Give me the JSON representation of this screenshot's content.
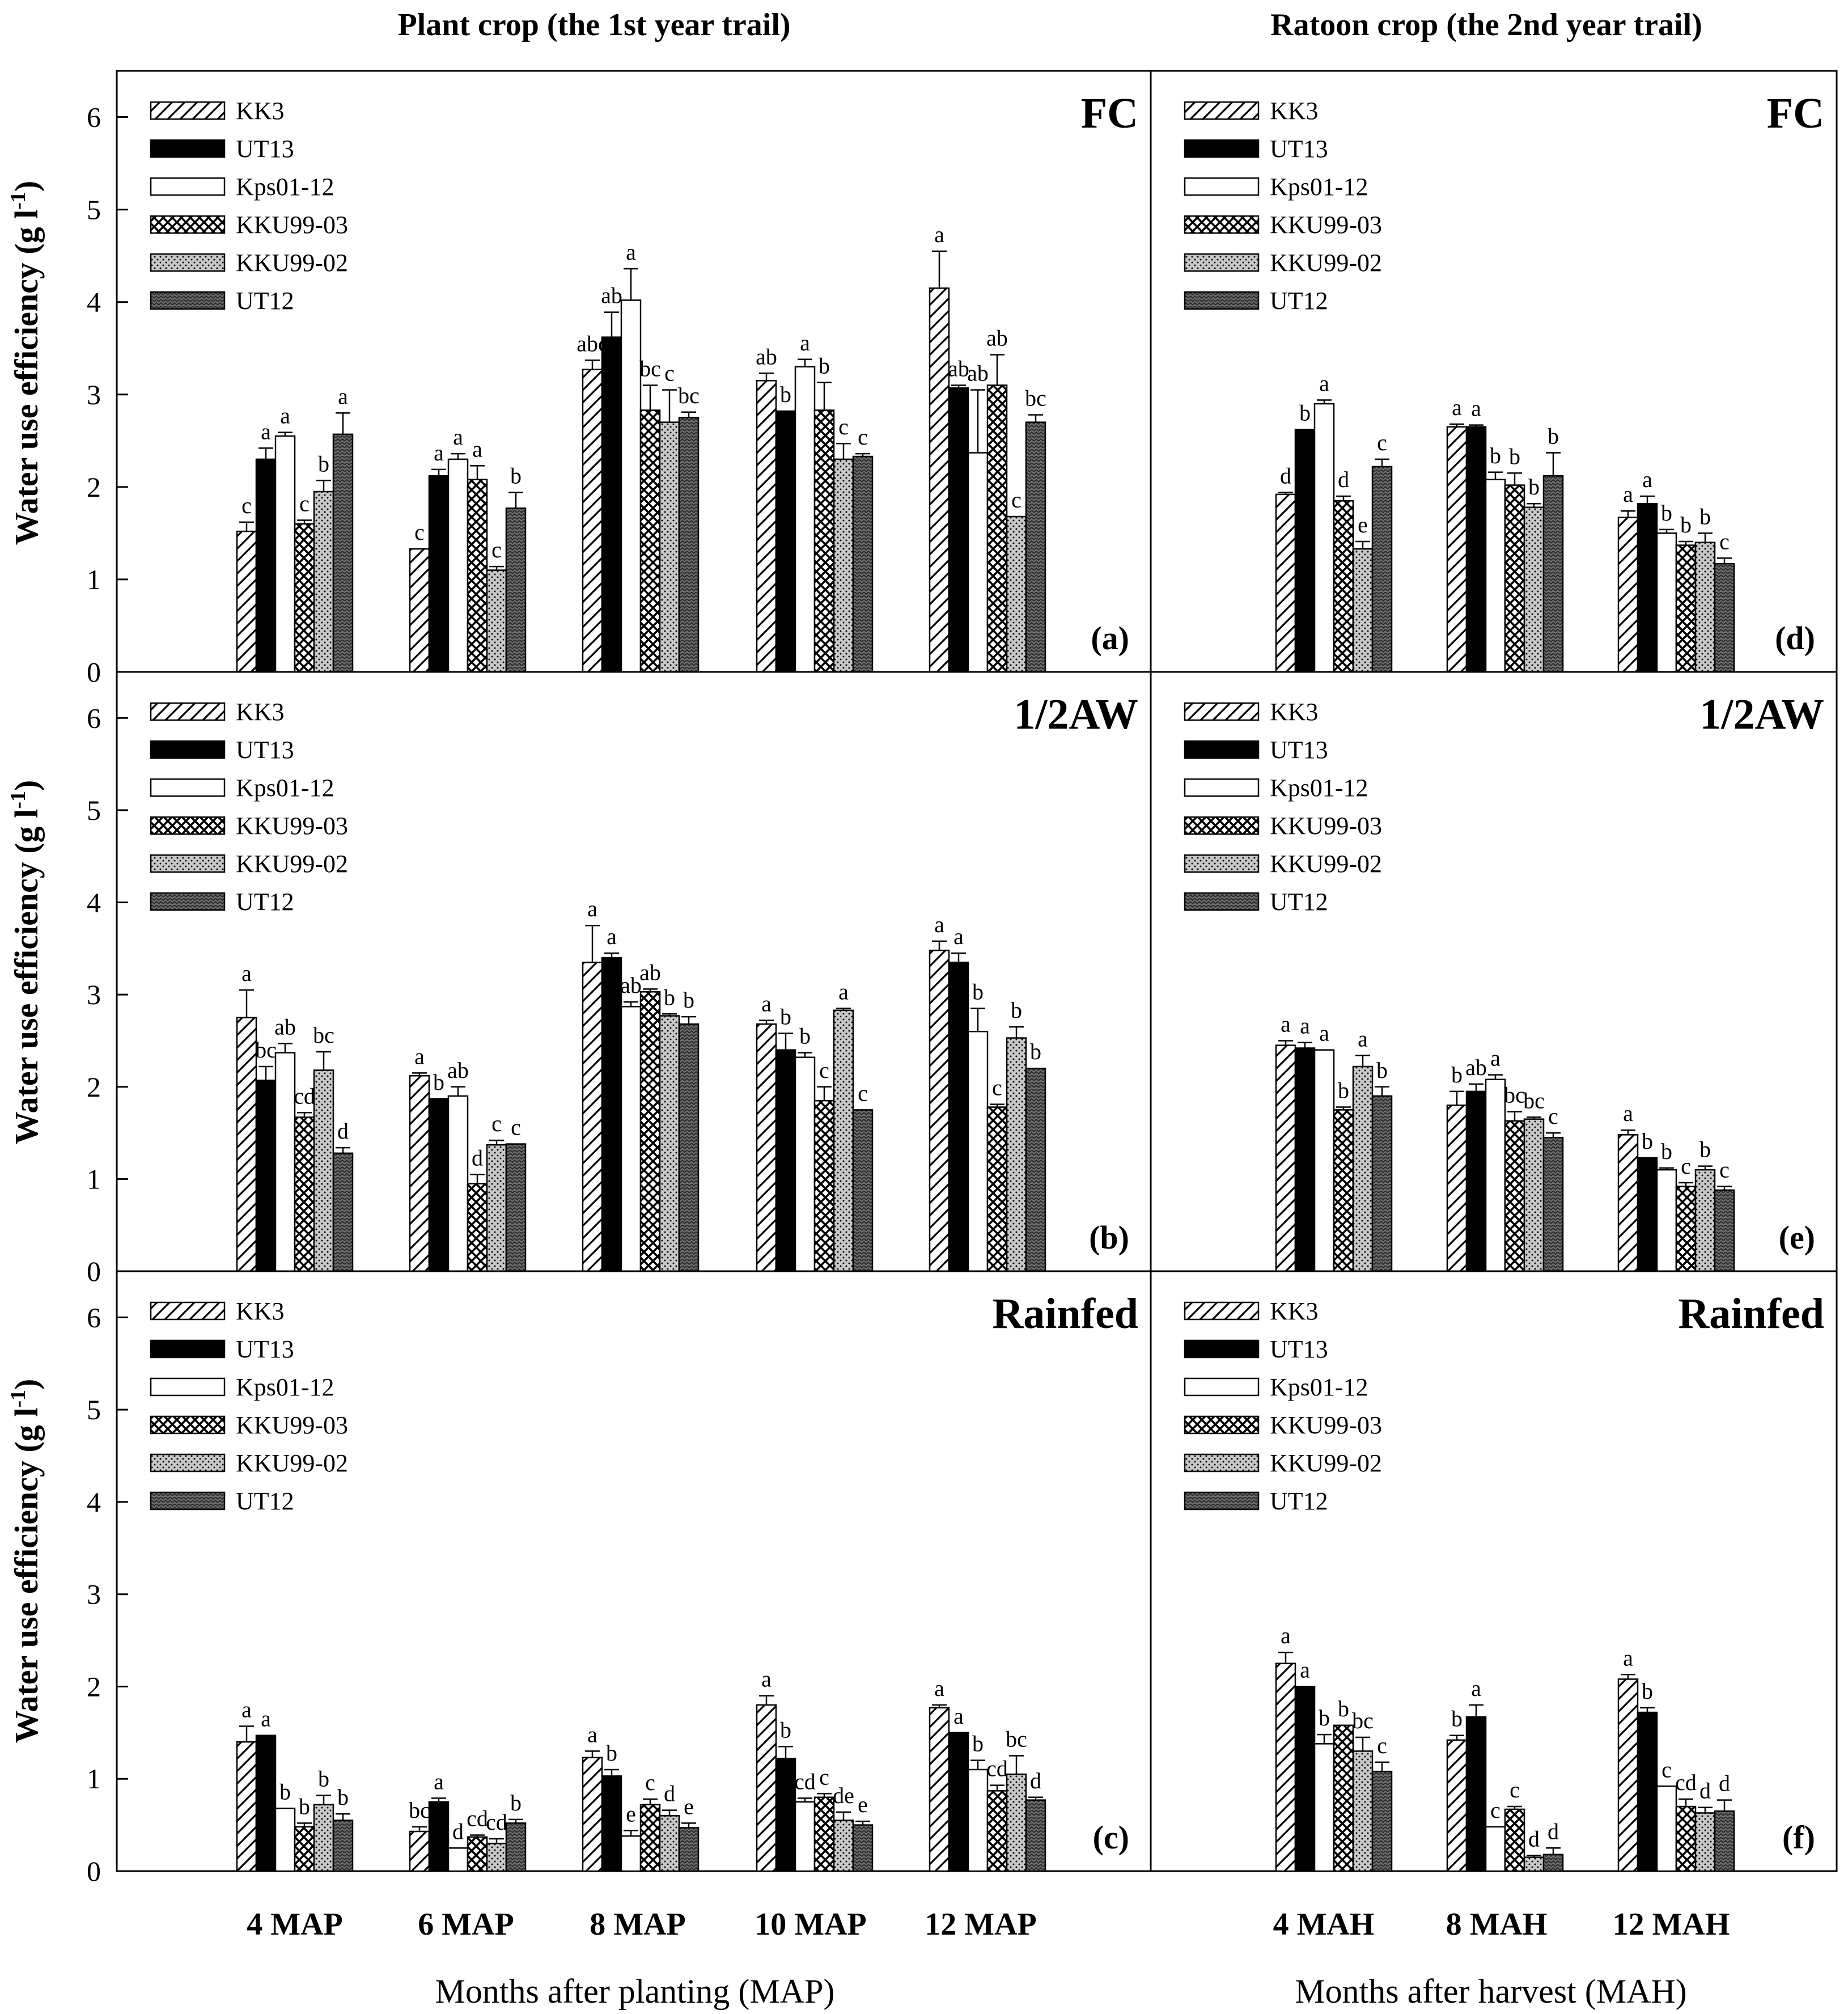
{
  "titles": {
    "left": "Plant crop (the 1st year trail)",
    "right": "Ratoon crop (the 2nd year trail)"
  },
  "y_label_prefix": "Water use efficiency (g l",
  "y_label_sup": "-1",
  "y_label_suffix": ")",
  "x_labels": {
    "left": "Months after planting (MAP)",
    "right": "Months after harvest (MAH)"
  },
  "varieties": [
    {
      "name": "KK3",
      "pattern": "diagonal-hatch"
    },
    {
      "name": "UT13",
      "pattern": "solid-black"
    },
    {
      "name": "Kps01-12",
      "pattern": "white"
    },
    {
      "name": "KKU99-03",
      "pattern": "crosshatch"
    },
    {
      "name": "KKU99-02",
      "pattern": "light-gray-dotted"
    },
    {
      "name": "UT12",
      "pattern": "dark-gray-zigzag"
    }
  ],
  "colors": {
    "black": "#000000",
    "light_gray": "#c8c8c8",
    "dark_gray": "#6e6e6e"
  },
  "chart_data": [
    {
      "type": "bar",
      "panel": "(a)",
      "condition": "FC",
      "crop": "Plant crop",
      "categories": [
        "4 MAP",
        "6 MAP",
        "8 MAP",
        "10 MAP",
        "12 MAP"
      ],
      "ylim": [
        0,
        6.5
      ],
      "yticks": [
        0,
        1,
        2,
        3,
        4,
        5,
        6
      ],
      "series": [
        {
          "name": "KK3",
          "values": [
            1.52,
            1.33,
            3.27,
            3.15,
            4.15
          ],
          "errors": [
            0.1,
            0,
            0.1,
            0.08,
            0.4
          ],
          "letters": [
            "c",
            "c",
            "abc",
            "ab",
            "a"
          ]
        },
        {
          "name": "UT13",
          "values": [
            2.3,
            2.12,
            3.62,
            2.82,
            3.07
          ],
          "errors": [
            0.12,
            0.07,
            0.27,
            0,
            0.03
          ],
          "letters": [
            "a",
            "a",
            "ab",
            "b",
            "ab"
          ]
        },
        {
          "name": "Kps01-12",
          "values": [
            2.55,
            2.3,
            4.02,
            3.3,
            2.37
          ],
          "errors": [
            0.04,
            0.06,
            0.34,
            0.08,
            0.68
          ],
          "letters": [
            "a",
            "a",
            "a",
            "a",
            "ab"
          ]
        },
        {
          "name": "KKU99-03",
          "values": [
            1.6,
            2.08,
            2.83,
            2.83,
            3.1
          ],
          "errors": [
            0.04,
            0.15,
            0.27,
            0.3,
            0.33
          ],
          "letters": [
            "c",
            "a",
            "bc",
            "b",
            "ab"
          ]
        },
        {
          "name": "KKU99-02",
          "values": [
            1.95,
            1.1,
            2.7,
            2.3,
            1.68
          ],
          "errors": [
            0.12,
            0.04,
            0.35,
            0.17,
            0
          ],
          "letters": [
            "b",
            "c",
            "c",
            "c",
            "c"
          ]
        },
        {
          "name": "UT12",
          "values": [
            2.57,
            1.77,
            2.75,
            2.33,
            2.7
          ],
          "errors": [
            0.23,
            0.17,
            0.06,
            0.03,
            0.08
          ],
          "letters": [
            "a",
            "b",
            "bc",
            "c",
            "bc"
          ]
        }
      ]
    },
    {
      "type": "bar",
      "panel": "(b)",
      "condition": "1/2AW",
      "crop": "Plant crop",
      "categories": [
        "4 MAP",
        "6 MAP",
        "8 MAP",
        "10 MAP",
        "12 MAP"
      ],
      "ylim": [
        0,
        6.5
      ],
      "yticks": [
        0,
        1,
        2,
        3,
        4,
        5,
        6
      ],
      "series": [
        {
          "name": "KK3",
          "values": [
            2.75,
            2.12,
            3.35,
            2.68,
            3.48
          ],
          "errors": [
            0.3,
            0.03,
            0.4,
            0.04,
            0.1
          ],
          "letters": [
            "a",
            "a",
            "a",
            "a",
            "a"
          ]
        },
        {
          "name": "UT13",
          "values": [
            2.07,
            1.87,
            3.4,
            2.4,
            3.35
          ],
          "errors": [
            0.15,
            0,
            0.05,
            0.18,
            0.1
          ],
          "letters": [
            "bc",
            "b",
            "a",
            "b",
            "a"
          ]
        },
        {
          "name": "Kps01-12",
          "values": [
            2.37,
            1.9,
            2.87,
            2.32,
            2.6
          ],
          "errors": [
            0.1,
            0.1,
            0.05,
            0.05,
            0.25
          ],
          "letters": [
            "ab",
            "ab",
            "ab",
            "b",
            "b"
          ]
        },
        {
          "name": "KKU99-03",
          "values": [
            1.67,
            0.95,
            3.03,
            1.85,
            1.78
          ],
          "errors": [
            0.05,
            0.1,
            0.03,
            0.15,
            0.03
          ],
          "letters": [
            "cd",
            "d",
            "ab",
            "c",
            "c"
          ]
        },
        {
          "name": "KKU99-02",
          "values": [
            2.18,
            1.37,
            2.77,
            2.83,
            2.53
          ],
          "errors": [
            0.2,
            0.05,
            0.02,
            0.02,
            0.12
          ],
          "letters": [
            "bc",
            "c",
            "b",
            "a",
            "b"
          ]
        },
        {
          "name": "UT12",
          "values": [
            1.28,
            1.38,
            2.68,
            1.75,
            2.2
          ],
          "errors": [
            0.06,
            0,
            0.08,
            0,
            0
          ],
          "letters": [
            "d",
            "c",
            "b",
            "c",
            "b"
          ]
        }
      ]
    },
    {
      "type": "bar",
      "panel": "(c)",
      "condition": "Rainfed",
      "crop": "Plant crop",
      "categories": [
        "4 MAP",
        "6 MAP",
        "8 MAP",
        "10 MAP",
        "12 MAP"
      ],
      "ylim": [
        0,
        6.5
      ],
      "yticks": [
        0,
        1,
        2,
        3,
        4,
        5,
        6
      ],
      "series": [
        {
          "name": "KK3",
          "values": [
            1.4,
            0.43,
            1.23,
            1.8,
            1.77
          ],
          "errors": [
            0.17,
            0.05,
            0.07,
            0.1,
            0.03
          ],
          "letters": [
            "a",
            "bc",
            "a",
            "a",
            "a"
          ]
        },
        {
          "name": "UT13",
          "values": [
            1.47,
            0.75,
            1.03,
            1.22,
            1.5
          ],
          "errors": [
            0,
            0.04,
            0.07,
            0.13,
            0
          ],
          "letters": [
            "a",
            "a",
            "b",
            "b",
            "a"
          ]
        },
        {
          "name": "Kps01-12",
          "values": [
            0.68,
            0.25,
            0.38,
            0.75,
            1.1
          ],
          "errors": [
            0,
            0,
            0.06,
            0.04,
            0.1
          ],
          "letters": [
            "b",
            "d",
            "e",
            "cd",
            "b"
          ]
        },
        {
          "name": "KKU99-03",
          "values": [
            0.48,
            0.37,
            0.72,
            0.8,
            0.87
          ],
          "errors": [
            0.04,
            0.02,
            0.06,
            0.04,
            0.06
          ],
          "letters": [
            "b",
            "cd",
            "c",
            "c",
            "cd"
          ]
        },
        {
          "name": "KKU99-02",
          "values": [
            0.72,
            0.3,
            0.6,
            0.55,
            1.05
          ],
          "errors": [
            0.1,
            0.05,
            0.06,
            0.09,
            0.2
          ],
          "letters": [
            "b",
            "cd",
            "d",
            "de",
            "bc"
          ]
        },
        {
          "name": "UT12",
          "values": [
            0.55,
            0.52,
            0.47,
            0.5,
            0.77
          ],
          "errors": [
            0.07,
            0.04,
            0.05,
            0.04,
            0.03
          ],
          "letters": [
            "b",
            "b",
            "e",
            "e",
            "d"
          ]
        }
      ]
    },
    {
      "type": "bar",
      "panel": "(d)",
      "condition": "FC",
      "crop": "Ratoon crop",
      "categories": [
        "4 MAH",
        "8 MAH",
        "12 MAH"
      ],
      "ylim": [
        0,
        6.5
      ],
      "yticks": [
        0,
        1,
        2,
        3,
        4,
        5,
        6
      ],
      "series": [
        {
          "name": "KK3",
          "values": [
            1.92,
            2.65,
            1.67
          ],
          "errors": [
            0.02,
            0.03,
            0.07
          ],
          "letters": [
            "d",
            "a",
            "a"
          ]
        },
        {
          "name": "UT13",
          "values": [
            2.62,
            2.65,
            1.82
          ],
          "errors": [
            0,
            0.02,
            0.08
          ],
          "letters": [
            "b",
            "a",
            "a"
          ]
        },
        {
          "name": "Kps01-12",
          "values": [
            2.9,
            2.08,
            1.5
          ],
          "errors": [
            0.04,
            0.08,
            0.04
          ],
          "letters": [
            "a",
            "b",
            "b"
          ]
        },
        {
          "name": "KKU99-03",
          "values": [
            1.85,
            2.02,
            1.37
          ],
          "errors": [
            0.05,
            0.13,
            0.04
          ],
          "letters": [
            "d",
            "b",
            "b"
          ]
        },
        {
          "name": "KKU99-02",
          "values": [
            1.33,
            1.78,
            1.4
          ],
          "errors": [
            0.08,
            0.04,
            0.1
          ],
          "letters": [
            "e",
            "b",
            "b"
          ]
        },
        {
          "name": "UT12",
          "values": [
            2.22,
            2.12,
            1.17
          ],
          "errors": [
            0.08,
            0.25,
            0.06
          ],
          "letters": [
            "c",
            "b",
            "c"
          ]
        }
      ]
    },
    {
      "type": "bar",
      "panel": "(e)",
      "condition": "1/2AW",
      "crop": "Ratoon crop",
      "categories": [
        "4 MAH",
        "8 MAH",
        "12 MAH"
      ],
      "ylim": [
        0,
        6.5
      ],
      "yticks": [
        0,
        1,
        2,
        3,
        4,
        5,
        6
      ],
      "series": [
        {
          "name": "KK3",
          "values": [
            2.45,
            1.8,
            1.48
          ],
          "errors": [
            0.05,
            0.15,
            0.05
          ],
          "letters": [
            "a",
            "b",
            "a"
          ]
        },
        {
          "name": "UT13",
          "values": [
            2.42,
            1.95,
            1.23
          ],
          "errors": [
            0.06,
            0.08,
            0
          ],
          "letters": [
            "a",
            "ab",
            "b"
          ]
        },
        {
          "name": "Kps01-12",
          "values": [
            2.4,
            2.08,
            1.1
          ],
          "errors": [
            0,
            0.05,
            0.02
          ],
          "letters": [
            "a",
            "a",
            "b"
          ]
        },
        {
          "name": "KKU99-03",
          "values": [
            1.75,
            1.63,
            0.92
          ],
          "errors": [
            0.03,
            0.1,
            0.04
          ],
          "letters": [
            "b",
            "bc",
            "c"
          ]
        },
        {
          "name": "KKU99-02",
          "values": [
            2.22,
            1.65,
            1.1
          ],
          "errors": [
            0.12,
            0.02,
            0.04
          ],
          "letters": [
            "a",
            "bc",
            "b"
          ]
        },
        {
          "name": "UT12",
          "values": [
            1.9,
            1.45,
            0.88
          ],
          "errors": [
            0.1,
            0.05,
            0.04
          ],
          "letters": [
            "b",
            "c",
            "c"
          ]
        }
      ]
    },
    {
      "type": "bar",
      "panel": "(f)",
      "condition": "Rainfed",
      "crop": "Ratoon crop",
      "categories": [
        "4 MAH",
        "8 MAH",
        "12 MAH"
      ],
      "ylim": [
        0,
        6.5
      ],
      "yticks": [
        0,
        1,
        2,
        3,
        4,
        5,
        6
      ],
      "series": [
        {
          "name": "KK3",
          "values": [
            2.25,
            1.42,
            2.08
          ],
          "errors": [
            0.12,
            0.05,
            0.05
          ],
          "letters": [
            "a",
            "b",
            "a"
          ]
        },
        {
          "name": "UT13",
          "values": [
            2.0,
            1.67,
            1.72
          ],
          "errors": [
            0,
            0.13,
            0.05
          ],
          "letters": [
            "a",
            "a",
            "b"
          ]
        },
        {
          "name": "Kps01-12",
          "values": [
            1.38,
            0.48,
            0.92
          ],
          "errors": [
            0.1,
            0,
            0
          ],
          "letters": [
            "b",
            "c",
            "c"
          ]
        },
        {
          "name": "KKU99-03",
          "values": [
            1.58,
            0.67,
            0.7
          ],
          "errors": [
            0,
            0.03,
            0.08
          ],
          "letters": [
            "b",
            "c",
            "cd"
          ]
        },
        {
          "name": "KKU99-02",
          "values": [
            1.3,
            0.15,
            0.63
          ],
          "errors": [
            0.15,
            0.02,
            0.06
          ],
          "letters": [
            "bc",
            "d",
            "d"
          ]
        },
        {
          "name": "UT12",
          "values": [
            1.08,
            0.18,
            0.65
          ],
          "errors": [
            0.1,
            0.07,
            0.12
          ],
          "letters": [
            "c",
            "d",
            "d"
          ]
        }
      ]
    }
  ]
}
